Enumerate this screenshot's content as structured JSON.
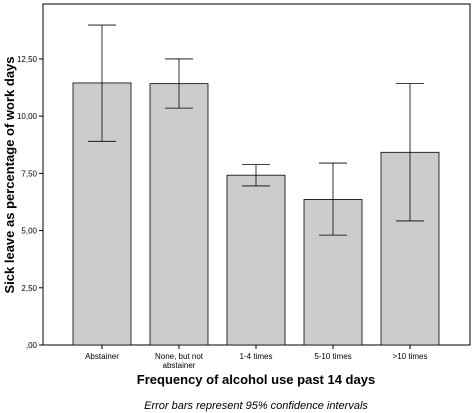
{
  "chart_data": {
    "type": "bar",
    "categories": [
      "Abstainer",
      "None, but not abstainer",
      "1-4 times",
      "5-10 times",
      ">10 times"
    ],
    "category_lines": [
      [
        "Abstainer"
      ],
      [
        "None, but not",
        "abstainer"
      ],
      [
        "1-4 times"
      ],
      [
        "5-10 times"
      ],
      [
        ">10 times"
      ]
    ],
    "values": [
      11.45,
      11.42,
      7.42,
      6.36,
      8.42
    ],
    "ci_lower": [
      8.9,
      10.35,
      6.95,
      4.8,
      5.42
    ],
    "ci_upper": [
      13.98,
      12.5,
      7.88,
      7.95,
      11.42
    ],
    "xlabel": "Frequency of alcohol use past 14 days",
    "ylabel": "Sick leave as percentage of work days",
    "ylim": [
      0,
      14.9
    ],
    "yticks": [
      0,
      2.5,
      5,
      7.5,
      10,
      12.5
    ],
    "ytick_labels": [
      ",00",
      "2,50",
      "5,00",
      "7,50",
      "10,00",
      "12,50"
    ],
    "footnote": "Error bars represent 95% confidence intervals",
    "bar_color": "#cccccc",
    "grid": false
  }
}
